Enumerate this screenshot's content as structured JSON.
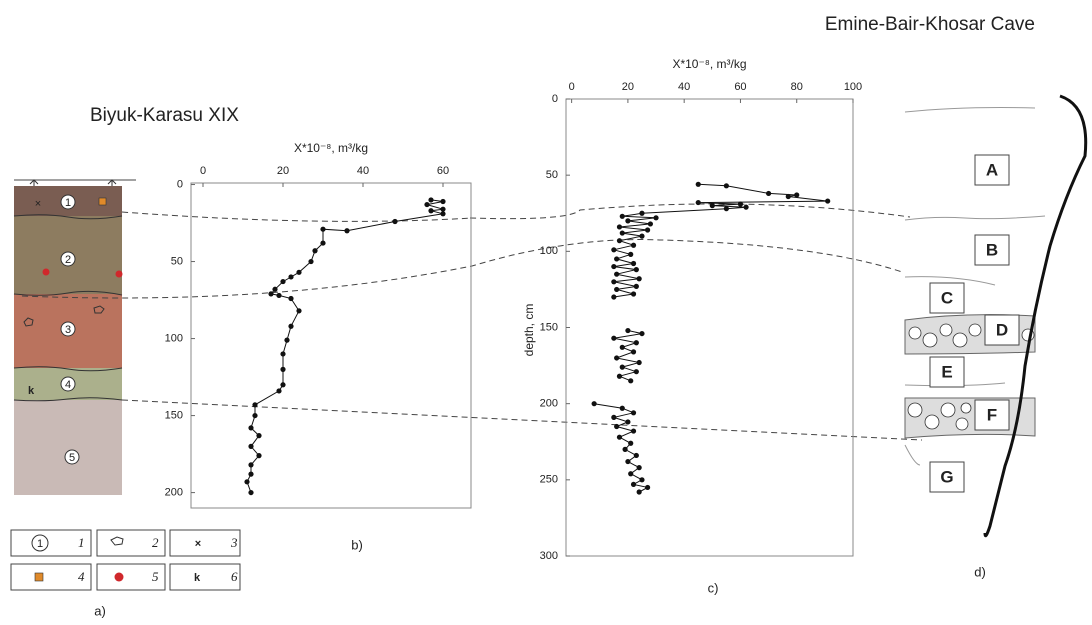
{
  "chart_data": [
    {
      "type": "line",
      "title": "Biyuk-Karasu XIX",
      "xlabel": "X*10⁻⁸, m³/kg",
      "panel_label": "b)",
      "xlim": [
        -3,
        67
      ],
      "xticks": [
        0,
        20,
        40,
        60
      ],
      "ylim": [
        -1,
        210
      ],
      "yticks": [
        0,
        50,
        100,
        150,
        200
      ],
      "color": "#111",
      "x": [
        57,
        60,
        56,
        60,
        57,
        60,
        48,
        36,
        30,
        30,
        28,
        27,
        24,
        22,
        20,
        18,
        17,
        19,
        22,
        24,
        22,
        21,
        20,
        20,
        20,
        19,
        13,
        13,
        12,
        14,
        12,
        14,
        12,
        12,
        11,
        12
      ],
      "values": [
        10,
        11,
        13,
        16,
        17,
        19,
        24,
        30,
        29,
        38,
        43,
        50,
        57,
        60,
        63,
        68,
        71,
        72,
        74,
        82,
        92,
        101,
        110,
        120,
        130,
        134,
        143,
        150,
        158,
        163,
        170,
        176,
        182,
        188,
        193,
        200
      ]
    },
    {
      "type": "line",
      "title": "Emine-Bair-Khosar Cave",
      "xlabel": "X*10⁻⁸, m³/kg",
      "ylabel": "depth, cm",
      "panel_label": "c)",
      "xlim": [
        -2,
        100
      ],
      "xticks": [
        0,
        20,
        40,
        60,
        80,
        100
      ],
      "ylim": [
        0,
        300
      ],
      "yticks": [
        0,
        50,
        100,
        150,
        200,
        250,
        300
      ],
      "color": "#111",
      "x": [
        45,
        55,
        70,
        80,
        77,
        91,
        45,
        60,
        50,
        62,
        55,
        25,
        18,
        30,
        20,
        28,
        17,
        27,
        18,
        25,
        17,
        22,
        15,
        21,
        16,
        22,
        15,
        23,
        16,
        24,
        15,
        23,
        16,
        22,
        15,
        null,
        20,
        25,
        15,
        23,
        18,
        22,
        16,
        24,
        18,
        23,
        17,
        21,
        null,
        8,
        18,
        22,
        15,
        20,
        16,
        22,
        17,
        21,
        19,
        23,
        20,
        24,
        21,
        25,
        22,
        27,
        24
      ],
      "values": [
        56,
        57,
        62,
        63,
        64,
        67,
        68,
        69,
        70,
        71,
        72,
        75,
        77,
        78,
        80,
        82,
        84,
        86,
        88,
        90,
        93,
        96,
        99,
        102,
        105,
        108,
        110,
        112,
        115,
        118,
        120,
        123,
        125,
        128,
        130,
        null,
        152,
        154,
        157,
        160,
        163,
        166,
        170,
        173,
        176,
        179,
        182,
        185,
        null,
        200,
        203,
        206,
        209,
        212,
        215,
        218,
        222,
        226,
        230,
        234,
        238,
        242,
        246,
        250,
        253,
        255,
        258
      ]
    }
  ],
  "column": {
    "panel_label": "a)",
    "layers": [
      "1",
      "2",
      "3",
      "4",
      "5"
    ],
    "k_mark": "k",
    "cross": "×",
    "legend": [
      "1",
      "2",
      "3",
      "4",
      "5",
      "6"
    ]
  },
  "cave": {
    "panel_label": "d)",
    "units": [
      "A",
      "B",
      "C",
      "D",
      "E",
      "F",
      "G"
    ]
  }
}
